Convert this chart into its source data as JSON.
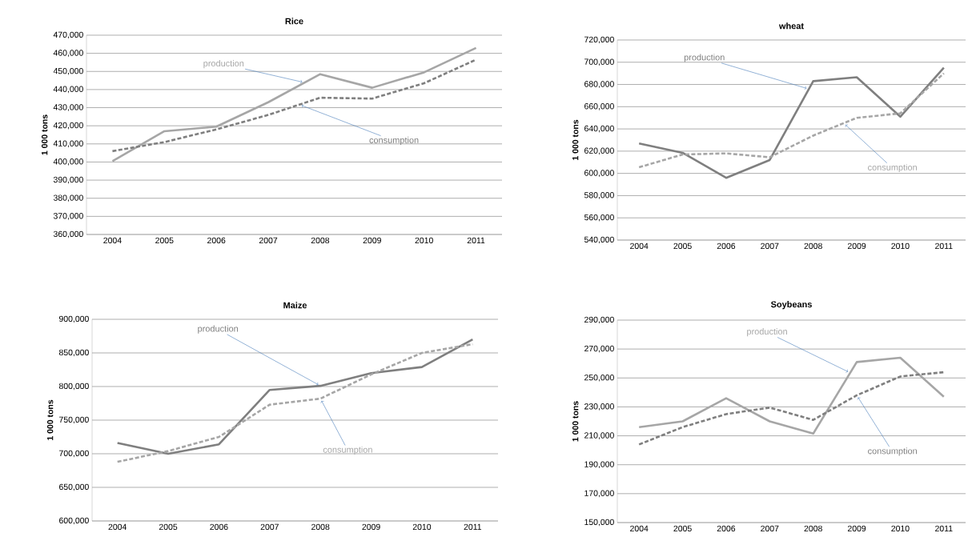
{
  "chart_data": [
    {
      "type": "line",
      "title": "Rice",
      "ylabel": "1 000 tons",
      "categories": [
        "2004",
        "2005",
        "2006",
        "2007",
        "2008",
        "2009",
        "2010",
        "2011"
      ],
      "grid": "y",
      "ylim": [
        360000,
        470000
      ],
      "yticks": [
        {
          "value": 360000,
          "label": "360,000"
        },
        {
          "value": 370000,
          "label": "370,000"
        },
        {
          "value": 380000,
          "label": "380,000"
        },
        {
          "value": 390000,
          "label": "390,000"
        },
        {
          "value": 400000,
          "label": "400,000"
        },
        {
          "value": 410000,
          "label": "410,000"
        },
        {
          "value": 420000,
          "label": "420,000"
        },
        {
          "value": 430000,
          "label": "430,000"
        },
        {
          "value": 440000,
          "label": "440,000"
        },
        {
          "value": 450000,
          "label": "450,000"
        },
        {
          "value": 460000,
          "label": "460,000"
        },
        {
          "value": 470000,
          "label": "470,000"
        }
      ],
      "series": [
        {
          "name": "production",
          "color": "#a6a6a6",
          "line_style": "solid",
          "values": [
            400500,
            417000,
            419500,
            433000,
            448500,
            441000,
            449500,
            463000
          ]
        },
        {
          "name": "consumption",
          "color": "#7f7f7f",
          "line_style": "dashed",
          "values": [
            406000,
            411000,
            418000,
            426000,
            435500,
            435000,
            443500,
            456500
          ]
        }
      ]
    },
    {
      "type": "line",
      "title": "wheat",
      "ylabel": "1 000 tons",
      "categories": [
        "2004",
        "2005",
        "2006",
        "2007",
        "2008",
        "2009",
        "2010",
        "2011"
      ],
      "grid": "y",
      "ylim": [
        540000,
        720000
      ],
      "yticks": [
        {
          "value": 540000,
          "label": "540,000"
        },
        {
          "value": 560000,
          "label": "560,000"
        },
        {
          "value": 580000,
          "label": "580,000"
        },
        {
          "value": 600000,
          "label": "600,000"
        },
        {
          "value": 620000,
          "label": "620,000"
        },
        {
          "value": 640000,
          "label": "640,000"
        },
        {
          "value": 660000,
          "label": "660,000"
        },
        {
          "value": 680000,
          "label": "680,000"
        },
        {
          "value": 700000,
          "label": "700,000"
        },
        {
          "value": 720000,
          "label": "720,000"
        }
      ],
      "series": [
        {
          "name": "production",
          "color": "#7f7f7f",
          "line_style": "solid",
          "values": [
            627000,
            618500,
            596000,
            612000,
            683000,
            686500,
            651000,
            695000
          ]
        },
        {
          "name": "consumption",
          "color": "#a6a6a6",
          "line_style": "dashed",
          "values": [
            605500,
            617000,
            618000,
            614500,
            634000,
            650000,
            654000,
            690000
          ]
        }
      ]
    },
    {
      "type": "line",
      "title": "Maize",
      "ylabel": "1 000 tons",
      "categories": [
        "2004",
        "2005",
        "2006",
        "2007",
        "2008",
        "2009",
        "2010",
        "2011"
      ],
      "grid": "y",
      "ylim": [
        600000,
        900000
      ],
      "yticks": [
        {
          "value": 600000,
          "label": "600,000"
        },
        {
          "value": 650000,
          "label": "650,000"
        },
        {
          "value": 700000,
          "label": "700,000"
        },
        {
          "value": 750000,
          "label": "750,000"
        },
        {
          "value": 800000,
          "label": "800,000"
        },
        {
          "value": 850000,
          "label": "850,000"
        },
        {
          "value": 900000,
          "label": "900,000"
        }
      ],
      "series": [
        {
          "name": "production",
          "color": "#7f7f7f",
          "line_style": "solid",
          "values": [
            716000,
            700000,
            714000,
            795000,
            801000,
            820000,
            829000,
            870000
          ]
        },
        {
          "name": "consumption",
          "color": "#a6a6a6",
          "line_style": "dashed",
          "values": [
            688000,
            704000,
            725000,
            773000,
            782000,
            818000,
            850000,
            863000
          ]
        }
      ]
    },
    {
      "type": "line",
      "title": "Soybeans",
      "ylabel": "1 000 tons",
      "categories": [
        "2004",
        "2005",
        "2006",
        "2007",
        "2008",
        "2009",
        "2010",
        "2011"
      ],
      "grid": "y",
      "ylim": [
        150000,
        290000
      ],
      "yticks": [
        {
          "value": 150000,
          "label": "150,000"
        },
        {
          "value": 170000,
          "label": "170,000"
        },
        {
          "value": 190000,
          "label": "190,000"
        },
        {
          "value": 210000,
          "label": "210,000"
        },
        {
          "value": 230000,
          "label": "230,000"
        },
        {
          "value": 250000,
          "label": "250,000"
        },
        {
          "value": 270000,
          "label": "270,000"
        },
        {
          "value": 290000,
          "label": "290,000"
        }
      ],
      "series": [
        {
          "name": "production",
          "color": "#a6a6a6",
          "line_style": "solid",
          "values": [
            216000,
            220000,
            236000,
            220000,
            211500,
            261000,
            264000,
            237000
          ]
        },
        {
          "name": "consumption",
          "color": "#7f7f7f",
          "line_style": "dashed",
          "values": [
            204000,
            216000,
            225000,
            229500,
            221000,
            238000,
            251000,
            254000
          ]
        }
      ]
    }
  ]
}
